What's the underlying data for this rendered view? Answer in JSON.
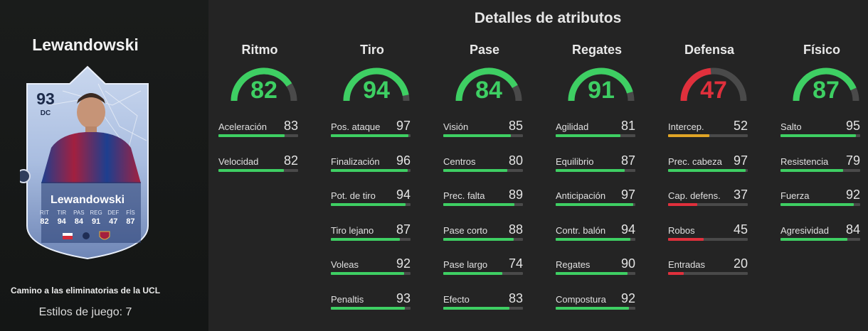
{
  "player": {
    "name": "Lewandowski",
    "card": {
      "rating": "93",
      "position": "DC",
      "name": "Lewandowski",
      "stat_labels": [
        "RIT",
        "TIR",
        "PAS",
        "REG",
        "DEF",
        "FÍS"
      ],
      "stat_values": [
        "82",
        "94",
        "84",
        "91",
        "47",
        "87"
      ]
    },
    "promo": "Camino a las eliminatorias de la UCL",
    "playstyles": "Estilos de juego: 7"
  },
  "attributes": {
    "title": "Detalles de atributos",
    "categories": [
      {
        "name": "Ritmo",
        "value": "82",
        "subs": [
          {
            "name": "Aceleración",
            "value": "83"
          },
          {
            "name": "Velocidad",
            "value": "82"
          }
        ]
      },
      {
        "name": "Tiro",
        "value": "94",
        "subs": [
          {
            "name": "Pos. ataque",
            "value": "97"
          },
          {
            "name": "Finalización",
            "value": "96"
          },
          {
            "name": "Pot. de tiro",
            "value": "94"
          },
          {
            "name": "Tiro lejano",
            "value": "87"
          },
          {
            "name": "Voleas",
            "value": "92"
          },
          {
            "name": "Penaltis",
            "value": "93"
          }
        ]
      },
      {
        "name": "Pase",
        "value": "84",
        "subs": [
          {
            "name": "Visión",
            "value": "85"
          },
          {
            "name": "Centros",
            "value": "80"
          },
          {
            "name": "Prec. falta",
            "value": "89"
          },
          {
            "name": "Pase corto",
            "value": "88"
          },
          {
            "name": "Pase largo",
            "value": "74"
          },
          {
            "name": "Efecto",
            "value": "83"
          }
        ]
      },
      {
        "name": "Regates",
        "value": "91",
        "subs": [
          {
            "name": "Agilidad",
            "value": "81"
          },
          {
            "name": "Equilibrio",
            "value": "87"
          },
          {
            "name": "Anticipación",
            "value": "97"
          },
          {
            "name": "Contr. balón",
            "value": "94"
          },
          {
            "name": "Regates",
            "value": "90"
          },
          {
            "name": "Compostura",
            "value": "92"
          }
        ]
      },
      {
        "name": "Defensa",
        "value": "47",
        "subs": [
          {
            "name": "Intercep.",
            "value": "52"
          },
          {
            "name": "Prec. cabeza",
            "value": "97"
          },
          {
            "name": "Cap. defens.",
            "value": "37"
          },
          {
            "name": "Robos",
            "value": "45"
          },
          {
            "name": "Entradas",
            "value": "20"
          }
        ]
      },
      {
        "name": "Físico",
        "value": "87",
        "subs": [
          {
            "name": "Salto",
            "value": "95"
          },
          {
            "name": "Resistencia",
            "value": "79"
          },
          {
            "name": "Fuerza",
            "value": "92"
          },
          {
            "name": "Agresividad",
            "value": "84"
          }
        ]
      }
    ]
  },
  "colors": {
    "high": "#3ecf63",
    "mid": "#e0a526",
    "low": "#e0303c",
    "track": "#4a4a4a"
  }
}
